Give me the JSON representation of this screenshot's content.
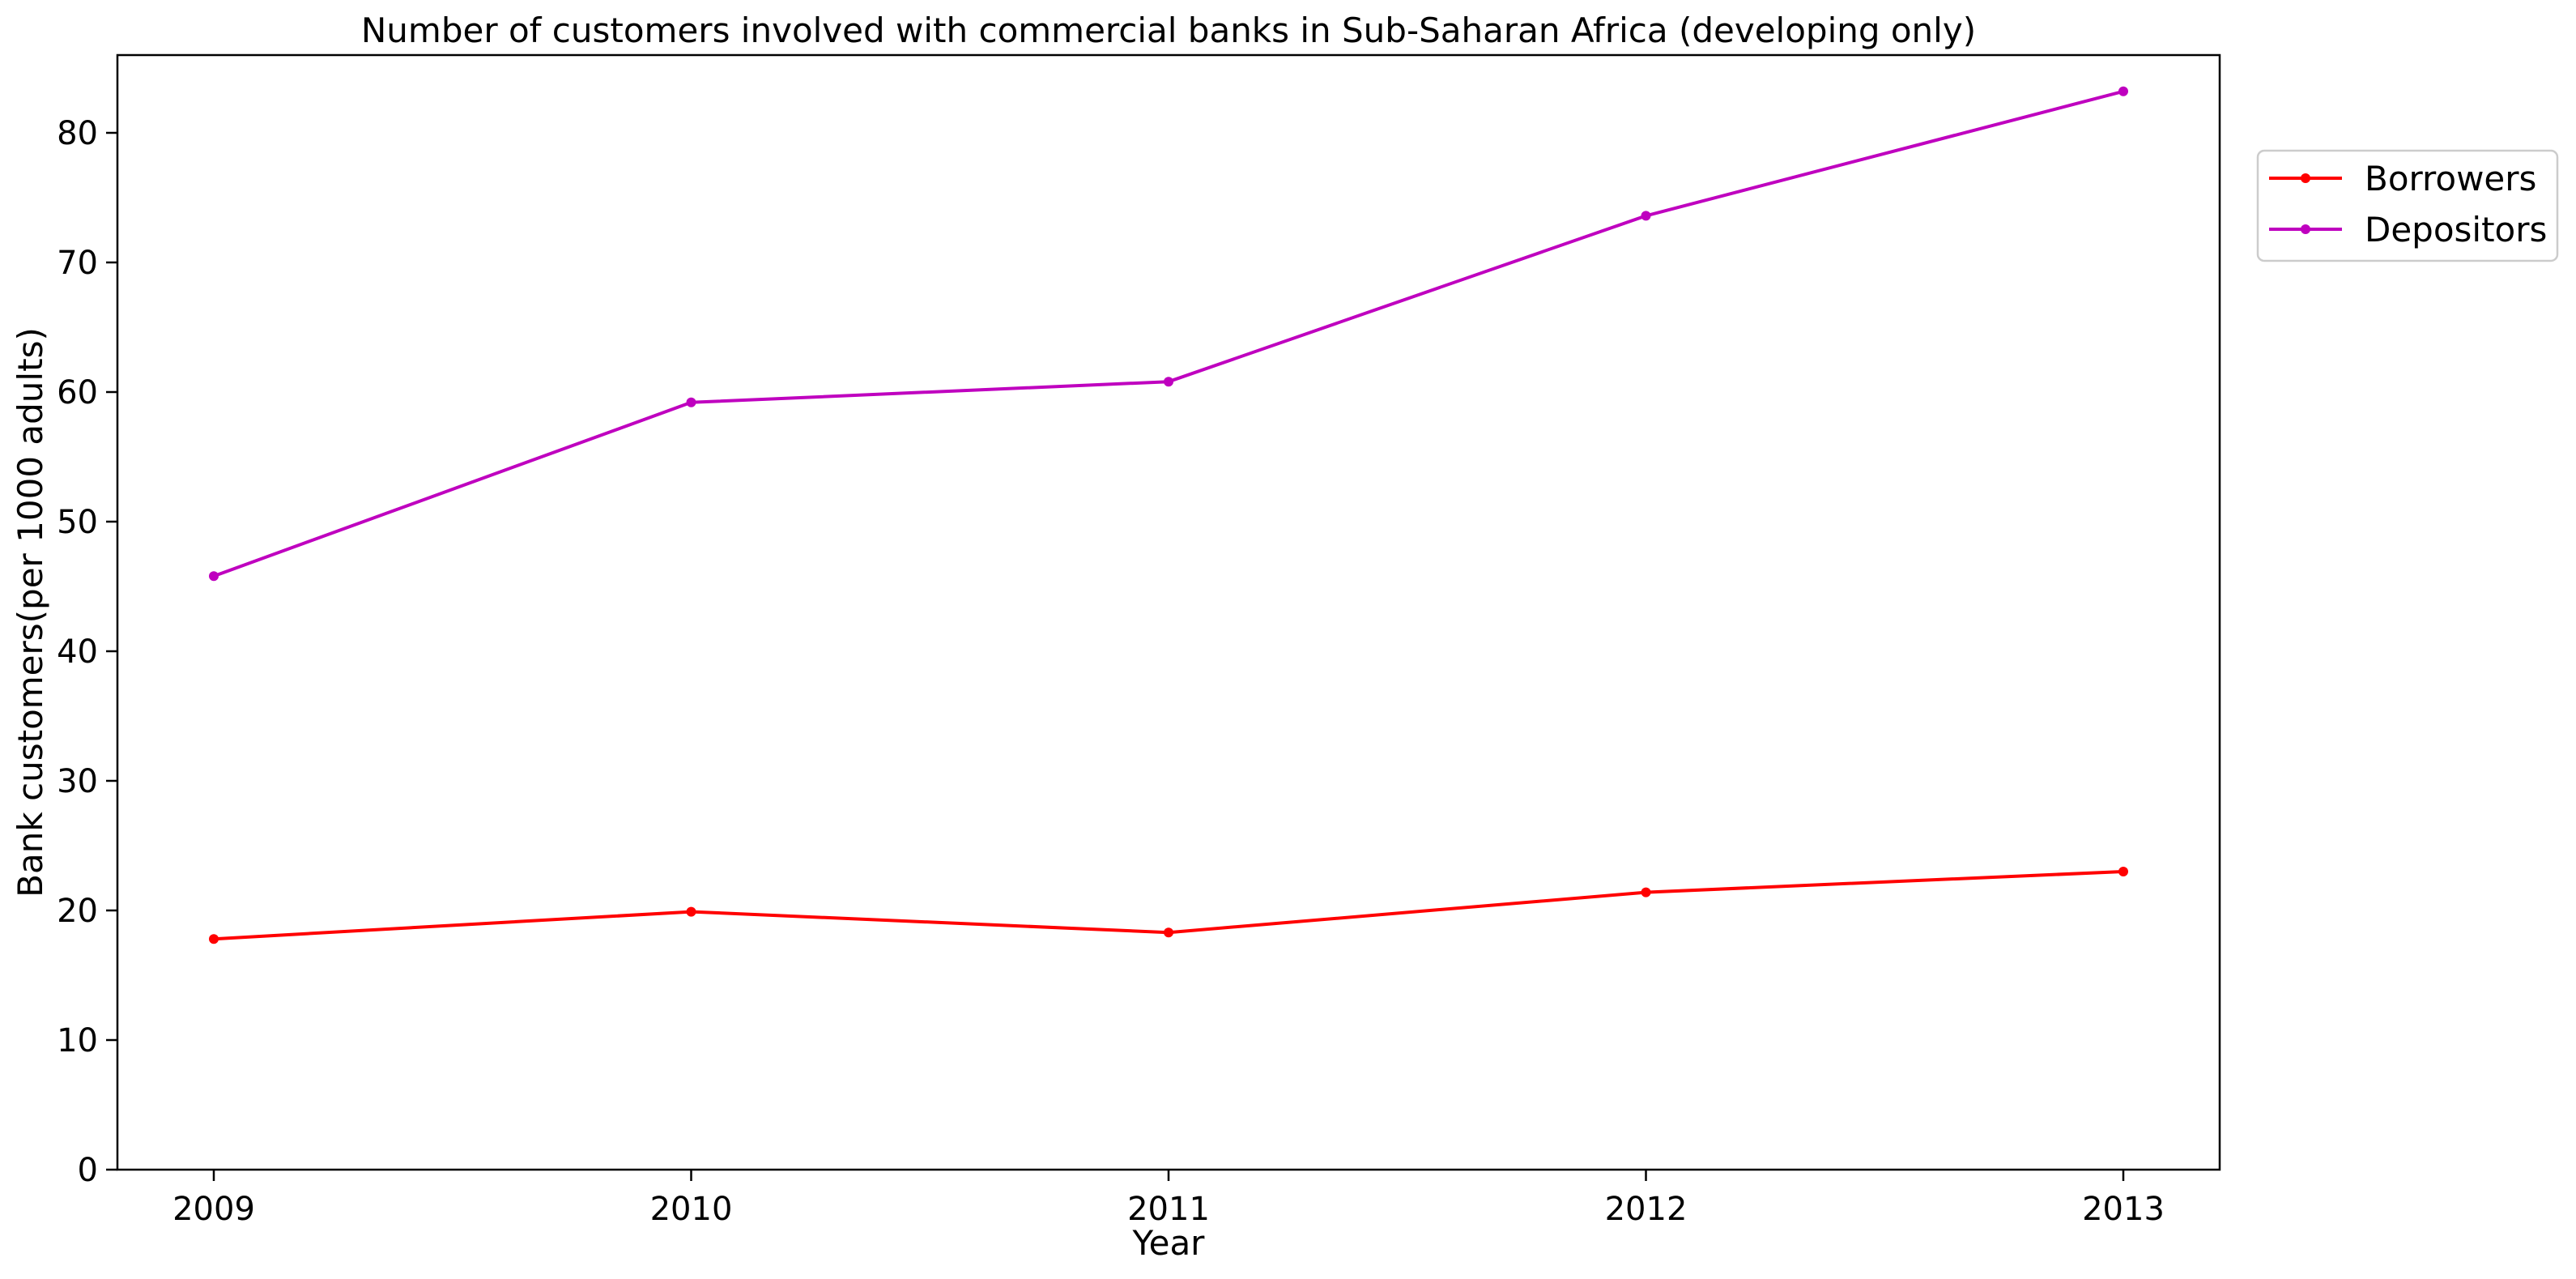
{
  "chart_data": {
    "type": "line",
    "title": "Number of customers involved with commercial banks in Sub-Saharan Africa (developing only)",
    "xlabel": "Year",
    "ylabel": "Bank customers(per 1000 adults)",
    "x": [
      "2009",
      "2010",
      "2011",
      "2012",
      "2013"
    ],
    "ylim": [
      0,
      86
    ],
    "yticks": [
      "0",
      "10",
      "20",
      "30",
      "40",
      "50",
      "60",
      "70",
      "80"
    ],
    "grid": false,
    "legend_position": "outside-top-right",
    "series": [
      {
        "name": "Borrowers",
        "color": "#ff0000",
        "values": [
          17.8,
          19.9,
          18.3,
          21.4,
          23.0
        ]
      },
      {
        "name": "Depositors",
        "color": "#bf00bf",
        "values": [
          45.8,
          59.2,
          60.8,
          73.6,
          83.2
        ]
      }
    ]
  }
}
